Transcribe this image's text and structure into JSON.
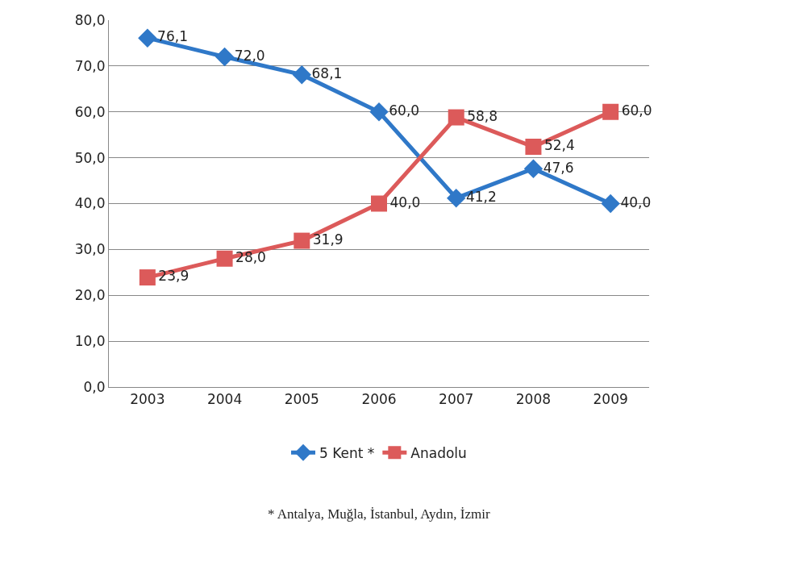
{
  "chart_data": {
    "type": "line",
    "categories": [
      "2003",
      "2004",
      "2005",
      "2006",
      "2007",
      "2008",
      "2009"
    ],
    "series": [
      {
        "name": "5 Kent *",
        "color": "#2f78c8",
        "marker": "diamond",
        "values": [
          76.1,
          72.0,
          68.1,
          60.0,
          41.2,
          47.6,
          40.0
        ],
        "value_labels": [
          "76,1",
          "72,0",
          "68,1",
          "60,0",
          "41,2",
          "47,6",
          "40,0"
        ]
      },
      {
        "name": "Anadolu",
        "color": "#dc5a5a",
        "marker": "square",
        "values": [
          23.9,
          28.0,
          31.9,
          40.0,
          58.8,
          52.4,
          60.0
        ],
        "value_labels": [
          "23,9",
          "28,0",
          "31,9",
          "40,0",
          "58,8",
          "52,4",
          "60,0"
        ]
      }
    ],
    "ylim": [
      0,
      80
    ],
    "yticks": [
      {
        "value": 0,
        "label": "0,0"
      },
      {
        "value": 10,
        "label": "10,0"
      },
      {
        "value": 20,
        "label": "20,0"
      },
      {
        "value": 30,
        "label": "30,0"
      },
      {
        "value": 40,
        "label": "40,0"
      },
      {
        "value": 50,
        "label": "50,0"
      },
      {
        "value": 60,
        "label": "60,0"
      },
      {
        "value": 70,
        "label": "70,0"
      },
      {
        "value": 80,
        "label": "80,0"
      }
    ],
    "grid": "y",
    "legend": "bottom",
    "line_style": "solid",
    "annotations": [
      "* Antalya, Muğla, İstanbul, Aydın, İzmir"
    ]
  }
}
